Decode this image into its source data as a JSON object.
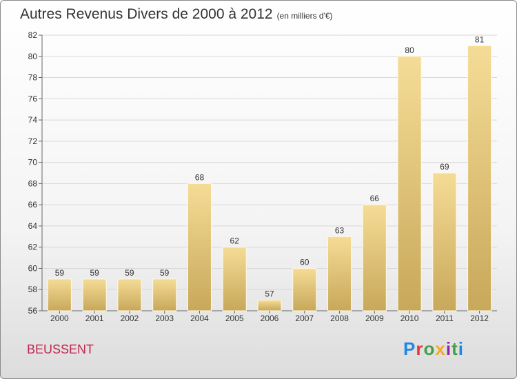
{
  "header": {
    "title": "Autres Revenus Divers de 2000 à 2012",
    "subtitle": "(en milliers d'€)"
  },
  "location": "BEUSSENT",
  "logo": {
    "text": "Proxiti",
    "colors": [
      "#1e88e5",
      "#e53935",
      "#43a047",
      "#f9a825",
      "#8e24aa",
      "#43a047",
      "#1e88e5"
    ]
  },
  "chart_data": {
    "type": "bar",
    "categories": [
      "2000",
      "2001",
      "2002",
      "2003",
      "2004",
      "2005",
      "2006",
      "2007",
      "2008",
      "2009",
      "2010",
      "2011",
      "2012"
    ],
    "values": [
      59,
      59,
      59,
      59,
      68,
      62,
      57,
      60,
      63,
      66,
      80,
      69,
      81
    ],
    "ylim": [
      56,
      82
    ],
    "yticks": [
      56,
      58,
      60,
      62,
      64,
      66,
      68,
      70,
      72,
      74,
      76,
      78,
      80,
      82
    ],
    "grid": true,
    "bar_color_top": "#f5dc96",
    "bar_color_bottom": "#c8a85a"
  }
}
